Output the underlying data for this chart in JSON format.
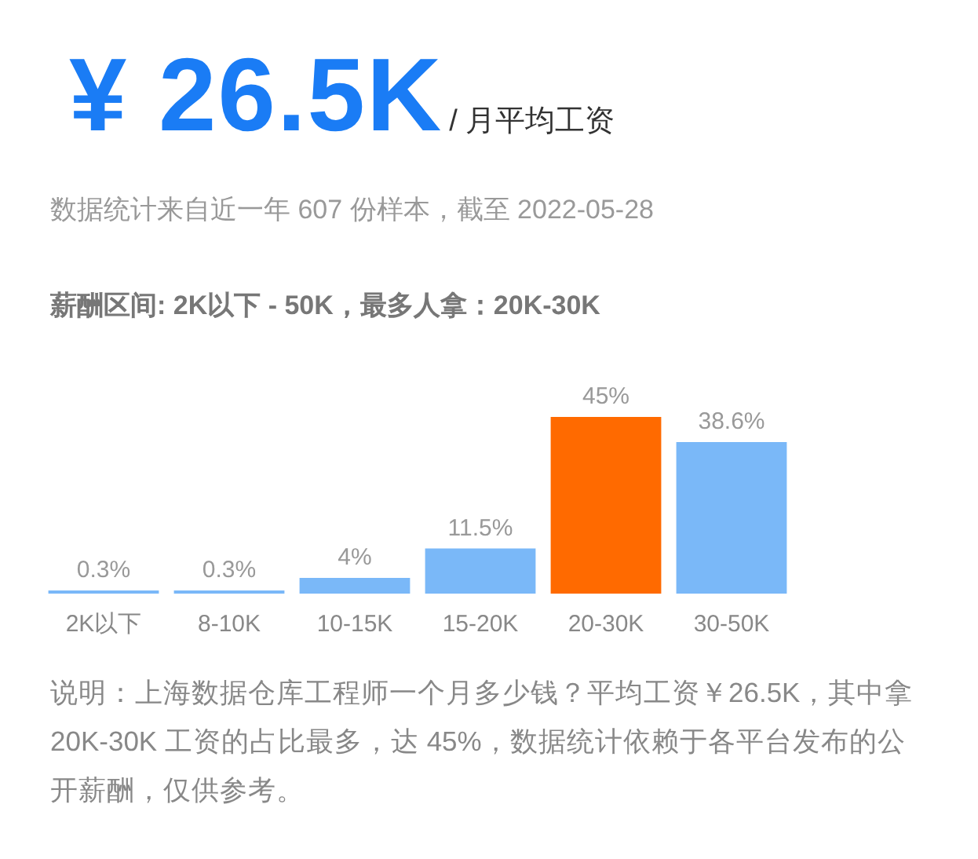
{
  "chart_data": {
    "type": "bar",
    "title": "¥ 26.5K",
    "subtitle": "/ 月平均工资",
    "annotations": [
      "数据统计来自近一年 607 份样本，截至 2022-05-28",
      "薪酬区间: 2K以下 - 50K，最多人拿：20K-30K",
      "说明：上海数据仓库工程师一个月多少钱？平均工资￥26.5K，其中拿 20K-30K 工资的占比最多，达 45%，数据统计依赖于各平台发布的公开薪酬，仅供参考。"
    ],
    "categories": [
      "2K以下",
      "8-10K",
      "10-15K",
      "15-20K",
      "20-30K",
      "30-50K"
    ],
    "values": [
      0.3,
      0.3,
      4,
      11.5,
      45,
      38.6
    ],
    "colors": [
      "#7ab8f8",
      "#7ab8f8",
      "#7ab8f8",
      "#7ab8f8",
      "#ff6a00",
      "#7ab8f8"
    ],
    "value_labels": [
      "0.3%",
      "0.3%",
      "4%",
      "11.5%",
      "45%",
      "38.6%"
    ],
    "tick_labels": "x"
  }
}
